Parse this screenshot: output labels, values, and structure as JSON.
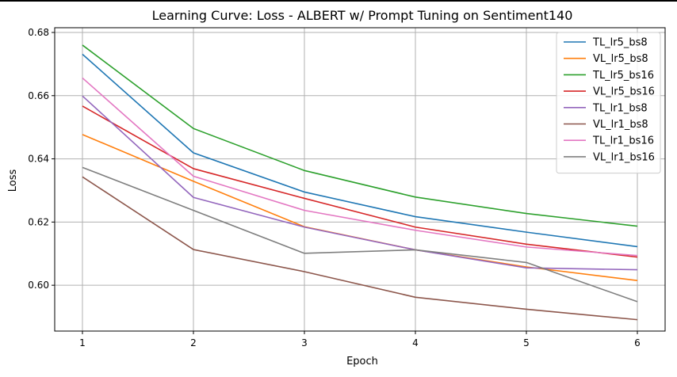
{
  "chart_data": {
    "type": "line",
    "title": "Learning Curve: Loss - ALBERT w/ Prompt Tuning on Sentiment140",
    "xlabel": "Epoch",
    "ylabel": "Loss",
    "x": [
      1,
      2,
      3,
      4,
      5,
      6
    ],
    "xticks": [
      "1",
      "2",
      "3",
      "4",
      "5",
      "6"
    ],
    "yticks": [
      "0.60",
      "0.62",
      "0.64",
      "0.66",
      "0.68"
    ],
    "xlim": [
      0.75,
      6.25
    ],
    "ylim": [
      0.5855,
      0.6815
    ],
    "grid": true,
    "legend_position": "top-right",
    "series": [
      {
        "name": "TL_lr5_bs8",
        "color": "#1f77b4",
        "values": [
          0.6731,
          0.6419,
          0.6295,
          0.6217,
          0.6168,
          0.6122
        ]
      },
      {
        "name": "VL_lr5_bs8",
        "color": "#ff7f0e",
        "values": [
          0.6477,
          0.6329,
          0.6185,
          0.6112,
          0.6058,
          0.6015
        ]
      },
      {
        "name": "TL_lr5_bs16",
        "color": "#2ca02c",
        "values": [
          0.676,
          0.6496,
          0.6363,
          0.6279,
          0.6227,
          0.6187
        ]
      },
      {
        "name": "VL_lr5_bs16",
        "color": "#d62728",
        "values": [
          0.6567,
          0.6369,
          0.6275,
          0.6184,
          0.613,
          0.6089
        ]
      },
      {
        "name": "TL_lr1_bs8",
        "color": "#9467bd",
        "values": [
          0.6599,
          0.6278,
          0.6184,
          0.6112,
          0.6055,
          0.6049
        ]
      },
      {
        "name": "VL_lr1_bs8",
        "color": "#8c564b",
        "values": [
          0.6343,
          0.6113,
          0.6043,
          0.5962,
          0.5924,
          0.5891
        ]
      },
      {
        "name": "TL_lr1_bs16",
        "color": "#e377c2",
        "values": [
          0.6656,
          0.6345,
          0.6237,
          0.6174,
          0.6121,
          0.6094
        ]
      },
      {
        "name": "VL_lr1_bs16",
        "color": "#7f7f7f",
        "values": [
          0.6373,
          0.6237,
          0.6101,
          0.6112,
          0.6072,
          0.5948
        ]
      }
    ]
  }
}
